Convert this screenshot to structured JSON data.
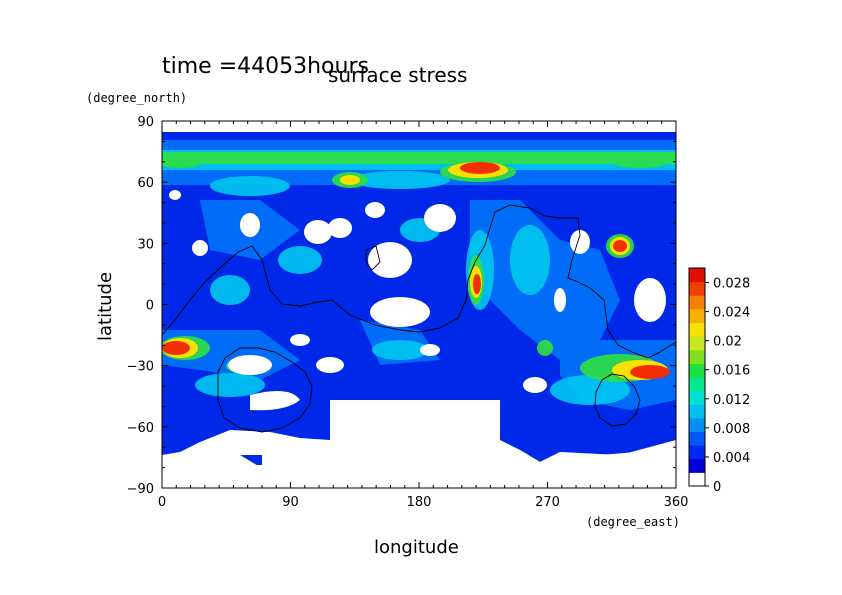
{
  "chart_data": {
    "type": "heatmap",
    "time_label": "time =44053hours",
    "title": "surface stress",
    "xlabel": "longitude",
    "ylabel": "latitude",
    "x_unit": "(degree_east)",
    "y_unit": "(degree_north)",
    "xlim": [
      0,
      360
    ],
    "ylim": [
      -90,
      90
    ],
    "x_ticks": [
      "0",
      "90",
      "180",
      "270",
      "360"
    ],
    "y_ticks": [
      "90",
      "60",
      "30",
      "0",
      "−30",
      "−60",
      "−90"
    ],
    "x_tick_values": [
      0,
      90,
      180,
      270,
      360
    ],
    "y_tick_values": [
      90,
      60,
      30,
      0,
      -30,
      -60,
      -90
    ],
    "colorbar": {
      "labels": [
        "0.028",
        "0.024",
        "0.02",
        "0.016",
        "0.012",
        "0.008",
        "0.004",
        "0"
      ],
      "label_values": [
        0.028,
        0.024,
        0.02,
        0.016,
        0.012,
        0.008,
        0.004,
        0
      ],
      "min": 0,
      "max": 0.03,
      "colors": [
        "#ffffff",
        "#0000d8",
        "#0028f0",
        "#0058f8",
        "#0090f8",
        "#00c0f0",
        "#00e0d0",
        "#00e890",
        "#20e040",
        "#80e020",
        "#c8e820",
        "#f8e000",
        "#f8b000",
        "#f88000",
        "#f04000",
        "#e01000"
      ]
    },
    "hotspots": [
      {
        "lon": 10,
        "lat": 68,
        "value": 0.018
      },
      {
        "lon": 130,
        "lat": 62,
        "value": 0.016
      },
      {
        "lon": 220,
        "lat": 66,
        "value": 0.026
      },
      {
        "lon": 330,
        "lat": 68,
        "value": 0.016
      },
      {
        "lon": 320,
        "lat": 28,
        "value": 0.026
      },
      {
        "lon": 222,
        "lat": 12,
        "value": 0.028
      },
      {
        "lon": 15,
        "lat": -22,
        "value": 0.026
      },
      {
        "lon": 55,
        "lat": -30,
        "value": 0.016
      },
      {
        "lon": 330,
        "lat": -32,
        "value": 0.026
      },
      {
        "lon": 305,
        "lat": -25,
        "value": 0.014
      },
      {
        "lon": 270,
        "lat": -20,
        "value": 0.012
      },
      {
        "lon": 160,
        "lat": -24,
        "value": 0.012
      }
    ]
  }
}
